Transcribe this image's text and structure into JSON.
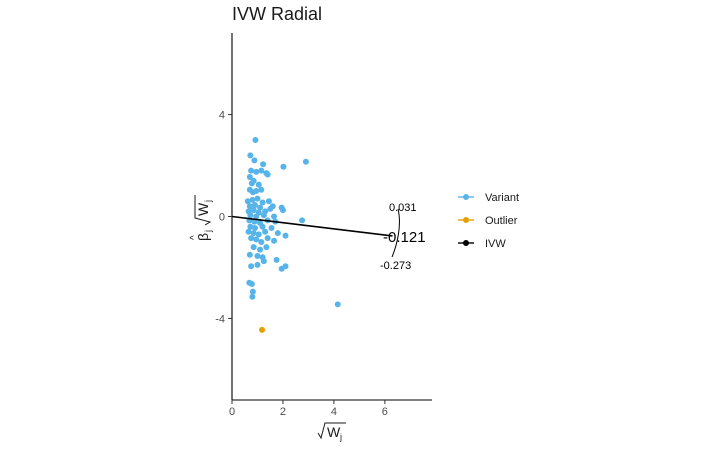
{
  "chart_data": {
    "type": "scatter",
    "title": "IVW Radial",
    "xlabel": "√W_j",
    "ylabel": "β̂_j √W_j",
    "xlim": [
      0,
      7.85
    ],
    "ylim": [
      -7.2,
      7.2
    ],
    "x_ticks": [
      "0",
      "2",
      "4",
      "6"
    ],
    "y_ticks": [
      "-4",
      "0",
      "4"
    ],
    "grid": false,
    "legend_position": "right",
    "legend": [
      {
        "label": "Variant",
        "color": "#56B4E9"
      },
      {
        "label": "Outlier",
        "color": "#E69F00"
      },
      {
        "label": "IVW",
        "color": "#000000"
      }
    ],
    "ivw_line": {
      "slope": -0.121,
      "x_end": 6.3
    },
    "annotations": {
      "estimate": "-0.121",
      "upper": "0.031",
      "lower": "-0.273"
    },
    "series": [
      {
        "name": "Variant",
        "color": "#56B4E9",
        "points": [
          [
            0.92,
            3.0
          ],
          [
            0.72,
            2.4
          ],
          [
            0.88,
            2.2
          ],
          [
            1.22,
            2.05
          ],
          [
            2.02,
            1.95
          ],
          [
            2.9,
            2.15
          ],
          [
            0.75,
            1.8
          ],
          [
            0.95,
            1.75
          ],
          [
            1.15,
            1.8
          ],
          [
            1.35,
            1.7
          ],
          [
            1.4,
            1.65
          ],
          [
            0.7,
            1.55
          ],
          [
            0.85,
            1.4
          ],
          [
            0.78,
            1.3
          ],
          [
            1.05,
            1.25
          ],
          [
            0.7,
            1.05
          ],
          [
            0.95,
            1.0
          ],
          [
            1.15,
            1.05
          ],
          [
            0.82,
            0.95
          ],
          [
            0.62,
            0.6
          ],
          [
            0.8,
            0.65
          ],
          [
            1.0,
            0.7
          ],
          [
            1.2,
            0.55
          ],
          [
            1.45,
            0.6
          ],
          [
            0.7,
            0.4
          ],
          [
            0.9,
            0.45
          ],
          [
            1.1,
            0.35
          ],
          [
            1.6,
            0.4
          ],
          [
            1.95,
            0.35
          ],
          [
            0.65,
            0.2
          ],
          [
            0.85,
            0.25
          ],
          [
            1.05,
            0.15
          ],
          [
            1.3,
            0.2
          ],
          [
            1.5,
            0.3
          ],
          [
            2.0,
            0.25
          ],
          [
            0.72,
            0.05
          ],
          [
            0.95,
            0.0
          ],
          [
            1.25,
            0.05
          ],
          [
            1.65,
            0.0
          ],
          [
            2.75,
            -0.15
          ],
          [
            0.68,
            -0.15
          ],
          [
            0.88,
            -0.2
          ],
          [
            1.1,
            -0.25
          ],
          [
            1.4,
            -0.15
          ],
          [
            1.7,
            -0.2
          ],
          [
            0.72,
            -0.4
          ],
          [
            0.9,
            -0.45
          ],
          [
            1.2,
            -0.4
          ],
          [
            1.55,
            -0.45
          ],
          [
            0.65,
            -0.6
          ],
          [
            0.85,
            -0.65
          ],
          [
            1.05,
            -0.7
          ],
          [
            1.3,
            -0.6
          ],
          [
            1.8,
            -0.65
          ],
          [
            2.1,
            -0.75
          ],
          [
            0.75,
            -0.85
          ],
          [
            0.95,
            -0.9
          ],
          [
            1.15,
            -1.0
          ],
          [
            1.4,
            -0.85
          ],
          [
            1.65,
            -0.95
          ],
          [
            0.85,
            -1.2
          ],
          [
            1.1,
            -1.3
          ],
          [
            1.35,
            -1.2
          ],
          [
            0.7,
            -1.5
          ],
          [
            1.0,
            -1.55
          ],
          [
            1.2,
            -1.6
          ],
          [
            1.25,
            -1.75
          ],
          [
            1.75,
            -1.7
          ],
          [
            0.75,
            -1.95
          ],
          [
            1.0,
            -1.9
          ],
          [
            1.95,
            -2.05
          ],
          [
            2.1,
            -1.95
          ],
          [
            0.68,
            -2.6
          ],
          [
            0.78,
            -2.65
          ],
          [
            0.82,
            -2.95
          ],
          [
            0.8,
            -3.15
          ],
          [
            4.15,
            -3.45
          ]
        ]
      },
      {
        "name": "Outlier",
        "color": "#E69F00",
        "points": [
          [
            1.18,
            -4.45
          ]
        ]
      }
    ]
  }
}
